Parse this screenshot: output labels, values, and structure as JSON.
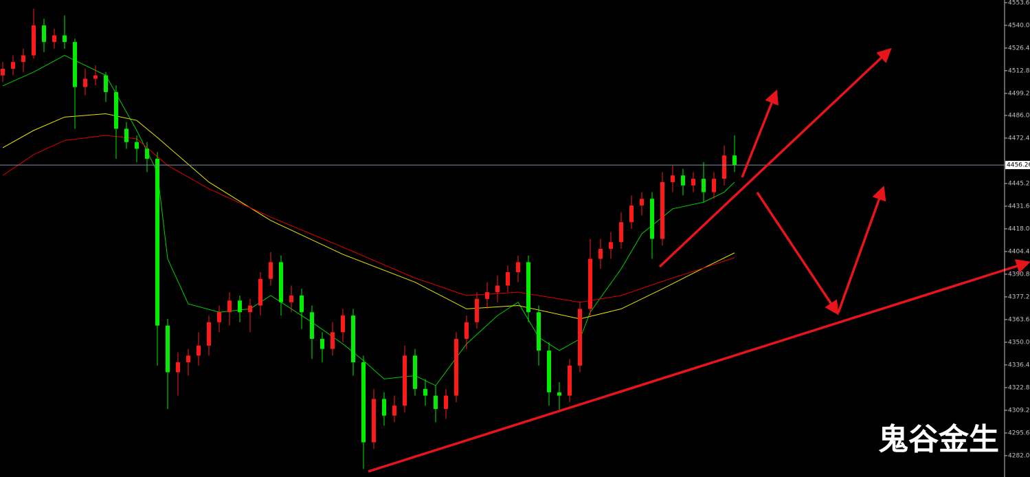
{
  "chart_data": {
    "type": "candlestick",
    "background": "#000000",
    "up_color": "#ff1a1a",
    "down_color": "#00ee00",
    "ylim": [
      4269.2,
      4555.2
    ],
    "yticks": [
      {
        "value": 4282.0,
        "label": "4282.00"
      },
      {
        "value": 4295.6,
        "label": "4295.60"
      },
      {
        "value": 4309.2,
        "label": "4309.20"
      },
      {
        "value": 4322.8,
        "label": "4322.80"
      },
      {
        "value": 4336.4,
        "label": "4336.40"
      },
      {
        "value": 4350.0,
        "label": "4350.00"
      },
      {
        "value": 4363.6,
        "label": "4363.60"
      },
      {
        "value": 4377.2,
        "label": "4377.20"
      },
      {
        "value": 4390.8,
        "label": "4390.80"
      },
      {
        "value": 4404.4,
        "label": "4404.40"
      },
      {
        "value": 4418.0,
        "label": "4418.00"
      },
      {
        "value": 4431.6,
        "label": "4431.60"
      },
      {
        "value": 4445.2,
        "label": "4445.20"
      },
      {
        "value": 4472.4,
        "label": "4472.40"
      },
      {
        "value": 4486.0,
        "label": "4486.00"
      },
      {
        "value": 4499.2,
        "label": "4499.20"
      },
      {
        "value": 4512.8,
        "label": "4512.80"
      },
      {
        "value": 4526.4,
        "label": "4526.40"
      },
      {
        "value": 4540.0,
        "label": "4540.00"
      },
      {
        "value": 4553.6,
        "label": "4553.60"
      }
    ],
    "open": [
      4510,
      4514,
      4518,
      4522,
      4540,
      4530,
      4534,
      4530,
      4503,
      4508,
      4510,
      4500,
      4478,
      4470,
      4466,
      4460,
      4360,
      4332,
      4338,
      4342,
      4348,
      4362,
      4368,
      4375,
      4368,
      4372,
      4388,
      4398,
      4374,
      4378,
      4368,
      4352,
      4346,
      4356,
      4366,
      4338,
      4290,
      4316,
      4306,
      4312,
      4342,
      4322,
      4318,
      4310,
      4318,
      4352,
      4362,
      4376,
      4380,
      4384,
      4392,
      4398,
      4368,
      4345,
      4320,
      4318,
      4336,
      4370,
      4400,
      4406,
      4410,
      4422,
      4432,
      4436,
      4412,
      4446,
      4450,
      4444,
      4448,
      4440,
      4448,
      4462
    ],
    "high": [
      4518,
      4522,
      4526,
      4550,
      4544,
      4538,
      4546,
      4532,
      4514,
      4516,
      4512,
      4504,
      4482,
      4474,
      4470,
      4464,
      4364,
      4344,
      4346,
      4356,
      4366,
      4372,
      4380,
      4378,
      4376,
      4392,
      4404,
      4402,
      4384,
      4382,
      4372,
      4356,
      4362,
      4370,
      4370,
      4342,
      4322,
      4320,
      4318,
      4348,
      4346,
      4328,
      4324,
      4322,
      4356,
      4366,
      4380,
      4386,
      4390,
      4396,
      4402,
      4402,
      4372,
      4350,
      4326,
      4340,
      4374,
      4412,
      4412,
      4416,
      4428,
      4438,
      4440,
      4440,
      4452,
      4456,
      4454,
      4452,
      4458,
      4452,
      4468,
      4474
    ],
    "low": [
      4506,
      4510,
      4512,
      4520,
      4524,
      4526,
      4526,
      4478,
      4498,
      4504,
      4494,
      4460,
      4466,
      4458,
      4452,
      4336,
      4310,
      4318,
      4330,
      4336,
      4342,
      4356,
      4360,
      4362,
      4356,
      4366,
      4384,
      4366,
      4368,
      4358,
      4340,
      4338,
      4342,
      4350,
      4330,
      4274,
      4286,
      4300,
      4302,
      4308,
      4318,
      4312,
      4302,
      4304,
      4314,
      4346,
      4358,
      4370,
      4374,
      4380,
      4386,
      4362,
      4336,
      4312,
      4308,
      4314,
      4332,
      4366,
      4394,
      4400,
      4406,
      4418,
      4426,
      4400,
      4408,
      4440,
      4438,
      4440,
      4434,
      4436,
      4444,
      4452
    ],
    "close": [
      4514,
      4518,
      4522,
      4540,
      4530,
      4534,
      4530,
      4503,
      4508,
      4510,
      4500,
      4478,
      4470,
      4466,
      4460,
      4360,
      4332,
      4338,
      4342,
      4348,
      4362,
      4368,
      4375,
      4368,
      4372,
      4388,
      4398,
      4374,
      4378,
      4368,
      4352,
      4346,
      4356,
      4366,
      4338,
      4290,
      4316,
      4306,
      4312,
      4342,
      4322,
      4318,
      4310,
      4318,
      4352,
      4362,
      4376,
      4380,
      4384,
      4392,
      4398,
      4368,
      4345,
      4320,
      4318,
      4336,
      4370,
      4400,
      4406,
      4410,
      4422,
      4432,
      4436,
      4412,
      4446,
      4450,
      4444,
      4448,
      4440,
      4448,
      4462,
      4456.26
    ],
    "series": [
      {
        "color": "#00d000",
        "x": [
          0,
          3,
          6,
          10,
          13,
          15,
          16,
          18,
          21,
          24,
          26,
          30,
          33,
          35,
          37,
          40,
          42,
          45,
          48,
          50,
          52,
          54,
          56,
          57,
          60,
          62,
          65,
          68,
          70,
          71
        ],
        "values": [
          4503.7,
          4512,
          4522,
          4510,
          4477,
          4452,
          4400,
          4373,
          4368,
          4370,
          4378,
          4362,
          4349,
          4339,
          4328,
          4330,
          4324,
          4349,
          4366,
          4374,
          4353,
          4345,
          4352,
          4368,
          4394,
          4415,
          4430,
          4434,
          4440,
          4446
        ]
      },
      {
        "color": "#e8e800",
        "x": [
          0,
          3,
          6,
          10,
          13,
          15,
          20,
          26,
          33,
          40,
          45,
          50,
          56,
          60,
          64,
          68,
          71
        ],
        "values": [
          4466.6,
          4477,
          4485,
          4487,
          4483,
          4472.8,
          4446,
          4423,
          4402.7,
          4386,
          4370,
          4372,
          4364,
          4370,
          4382,
          4394.5,
          4403.6
        ]
      },
      {
        "color": "#e00000",
        "x": [
          0,
          3,
          6,
          10,
          13,
          16,
          20,
          26,
          33,
          40,
          45,
          50,
          56,
          60,
          64,
          68,
          71
        ],
        "values": [
          4450,
          4462.5,
          4471,
          4474,
          4472,
          4456,
          4442,
          4425,
          4407,
          4388.5,
          4378,
          4380,
          4374,
          4378,
          4386.5,
          4394.5,
          4400.7
        ]
      }
    ],
    "current_price": {
      "value": 4456.26,
      "label": "4456.26",
      "color": "#8090b0"
    },
    "watermark": "鬼谷金生"
  }
}
